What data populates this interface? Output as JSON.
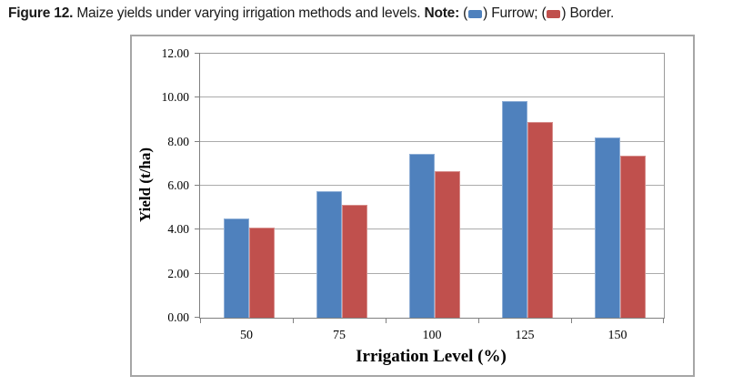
{
  "caption": {
    "figure_label": "Figure 12.",
    "body": " Maize yields under varying irrigation methods and levels. ",
    "note_label": "Note:",
    "sep1": " (",
    "furrow_close": ") Furrow; (",
    "border_close": ") Border."
  },
  "chart_data": {
    "type": "bar",
    "title": "",
    "categories": [
      "50",
      "75",
      "100",
      "125",
      "150"
    ],
    "series": [
      {
        "name": "Furrow",
        "color": "#4F81BD",
        "edge_color": "#8EAED6",
        "values": [
          4.5,
          5.75,
          7.45,
          9.85,
          8.2
        ]
      },
      {
        "name": "Border",
        "color": "#C0504D",
        "edge_color": "#D78E8C",
        "values": [
          4.1,
          5.15,
          6.65,
          8.9,
          7.35
        ]
      }
    ],
    "xlabel": "Irrigation Level (%)",
    "ylabel": "Yield (t/ha)",
    "ylim": [
      0,
      12
    ],
    "ytick_step": 2,
    "yticks": [
      "12.00",
      "10.00",
      "8.00",
      "6.00",
      "4.00",
      "2.00",
      "0.00"
    ],
    "grid": true,
    "legend_position": "in-caption"
  },
  "colors": {
    "furrow": "#4F81BD",
    "border_series": "#C0504D",
    "gridline": "#ABABAB",
    "axis": "#808080",
    "chart_frame": "#A6A6A6"
  }
}
